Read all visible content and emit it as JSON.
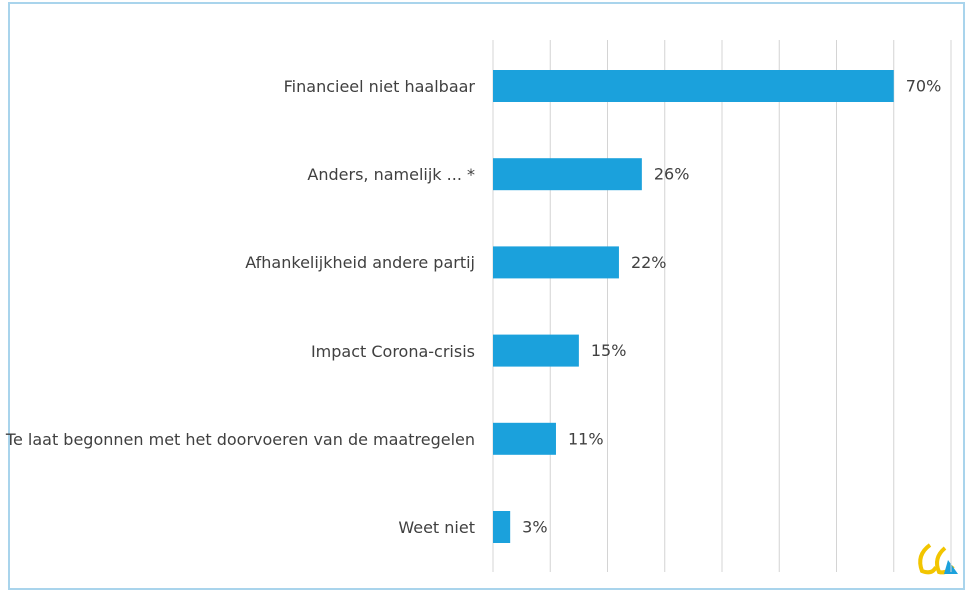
{
  "chart_data": {
    "type": "barh",
    "categories": [
      "Financieel niet haalbaar",
      "Anders, namelijk ... *",
      "Afhankelijkheid andere partij",
      "Impact Corona-crisis",
      "Te laat begonnen met het doorvoeren van de maatregelen",
      "Weet niet"
    ],
    "values": [
      70,
      26,
      22,
      15,
      11,
      3
    ],
    "value_labels": [
      "70%",
      "26%",
      "22%",
      "15%",
      "11%",
      "3%"
    ],
    "color": "#1ba1dc",
    "xlim": [
      0,
      80
    ],
    "xticks": [
      0,
      10,
      20,
      30,
      40,
      50,
      60,
      70,
      80
    ],
    "grid": true
  }
}
